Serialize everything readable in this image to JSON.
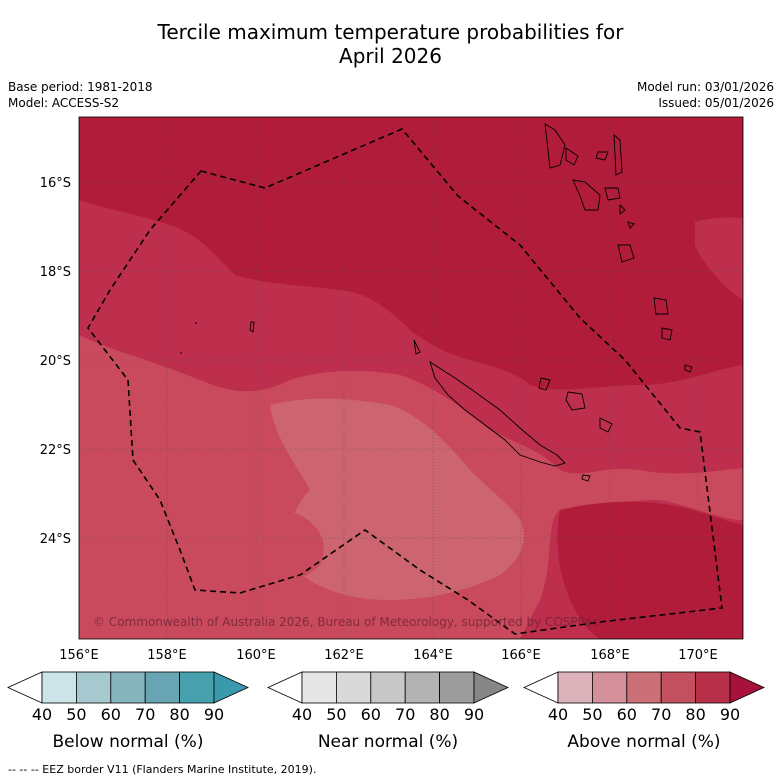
{
  "title_line1": "Tercile maximum temperature probabilities for",
  "title_line2": "April 2026",
  "base_period": "Base period: 1981-2018",
  "model": "Model: ACCESS-S2",
  "model_run": "Model run: 03/01/2026",
  "issued": "Issued: 05/01/2026",
  "copyright": "© Commonwealth of Australia 2026, Bureau of Meteorology, supported by COSPPac",
  "footer": "--  --  -- EEZ border V11 (Flanders Marine Institute, 2019).",
  "lat_labels": [
    "16°S",
    "18°S",
    "20°S",
    "22°S",
    "24°S"
  ],
  "lon_labels": [
    "156°E",
    "158°E",
    "160°E",
    "162°E",
    "164°E",
    "166°E",
    "168°E",
    "170°E"
  ],
  "colorbars": {
    "below": {
      "title": "Below normal (%)",
      "ticks": [
        "40",
        "50",
        "60",
        "70",
        "80",
        "90"
      ],
      "colors": [
        "#ffffff",
        "#cce3e8",
        "#a6c9cf",
        "#86b5be",
        "#66a5b1",
        "#47a0ae",
        "#3a9aab"
      ]
    },
    "near": {
      "title": "Near normal (%)",
      "ticks": [
        "40",
        "50",
        "60",
        "70",
        "80",
        "90"
      ],
      "colors": [
        "#ffffff",
        "#e6e6e6",
        "#d9d9d9",
        "#c8c8c8",
        "#b3b3b3",
        "#9c9c9c",
        "#868686"
      ]
    },
    "above": {
      "title": "Above normal (%)",
      "ticks": [
        "40",
        "50",
        "60",
        "70",
        "80",
        "90"
      ],
      "colors": [
        "#ffffff",
        "#dcb3bb",
        "#d4909a",
        "#cc7078",
        "#c2505f",
        "#b82f4a",
        "#a8123a"
      ]
    }
  },
  "map_colors": {
    "p90": "#b11c3a",
    "p80": "#bd2f4c",
    "p70": "#c94a5c",
    "p60": "#cd6570",
    "coast": "#000000"
  }
}
